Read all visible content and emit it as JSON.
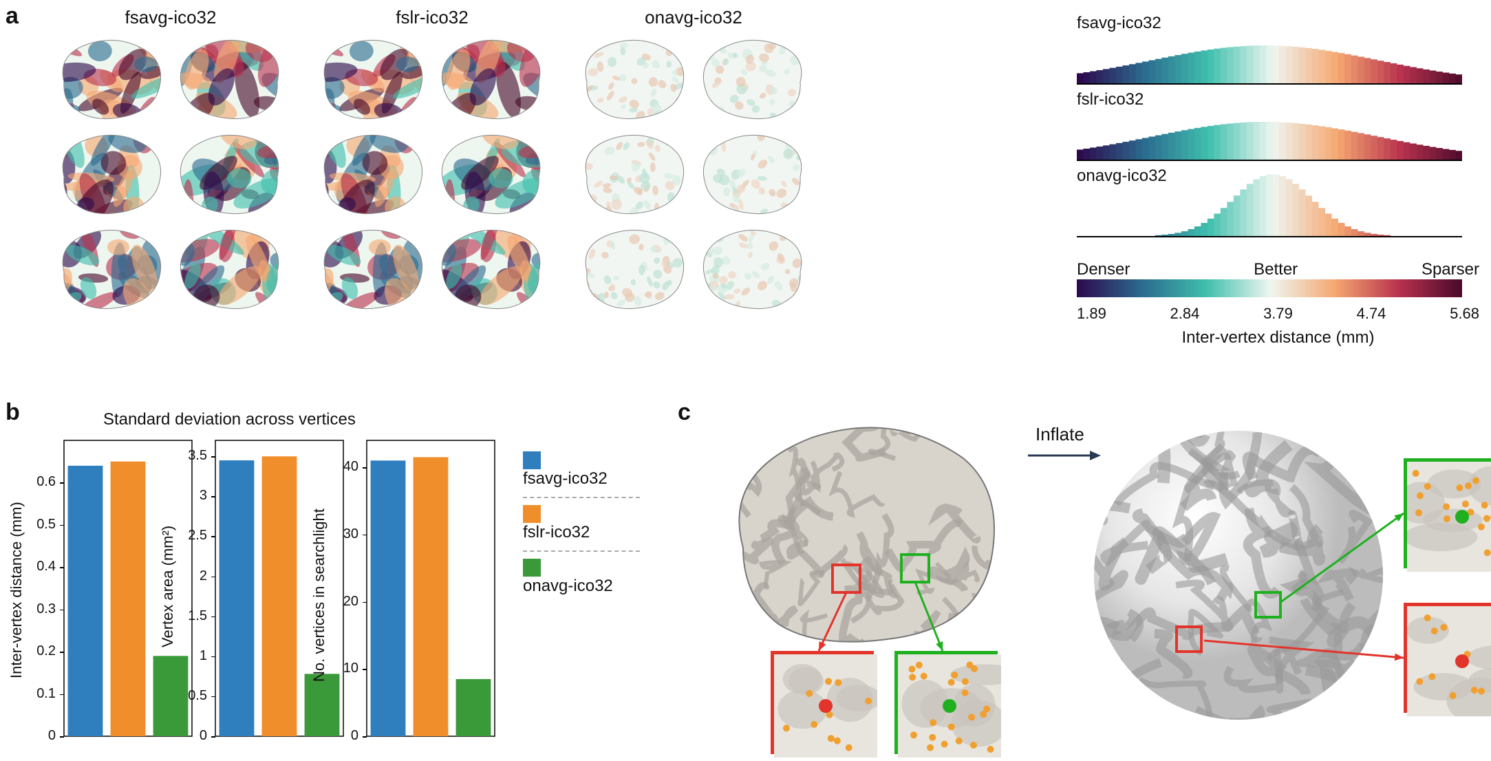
{
  "panel_labels": {
    "a": "a",
    "b": "b",
    "c": "c"
  },
  "brain_columns": [
    {
      "title": "fsavg-ico32",
      "palette": "strong"
    },
    {
      "title": "fslr-ico32",
      "palette": "strong"
    },
    {
      "title": "onavg-ico32",
      "palette": "weak"
    }
  ],
  "histograms": {
    "items": [
      {
        "label": "fsavg-ico32",
        "shape": "wide"
      },
      {
        "label": "fslr-ico32",
        "shape": "wide"
      },
      {
        "label": "onavg-ico32",
        "shape": "narrow"
      }
    ]
  },
  "colorbar": {
    "left_label": "Denser",
    "mid_label": "Better",
    "right_label": "Sparser",
    "axis_label": "Inter-vertex distance (mm)",
    "ticks": [
      "1.89",
      "2.84",
      "3.79",
      "4.74",
      "5.68"
    ],
    "stops": [
      "#2d0a4e",
      "#2b6b8f",
      "#3fbfad",
      "#eef6f0",
      "#f5a872",
      "#b8324d",
      "#47092a"
    ]
  },
  "panel_b": {
    "title": "Standard deviation across vertices",
    "title_fontsize": 24,
    "colors": {
      "fsavg": "#2f7fbf",
      "fslr": "#f18e2c",
      "onavg": "#3a9a3a"
    },
    "legend": [
      {
        "key": "fsavg",
        "label": "fsavg-ico32"
      },
      {
        "key": "fslr",
        "label": "fslr-ico32"
      },
      {
        "key": "onavg",
        "label": "onavg-ico32"
      }
    ],
    "charts": [
      {
        "ylabel": "Inter-vertex distance (mm)",
        "ymax": 0.7,
        "yticks": [
          0,
          0.1,
          0.2,
          0.3,
          0.4,
          0.5,
          0.6
        ],
        "values": {
          "fsavg": 0.64,
          "fslr": 0.65,
          "onavg": 0.19
        }
      },
      {
        "ylabel": "Vertex area (mm²)",
        "ymax": 3.7,
        "yticks": [
          0,
          0.5,
          1.0,
          1.5,
          2.0,
          2.5,
          3.0,
          3.5
        ],
        "values": {
          "fsavg": 3.45,
          "fslr": 3.5,
          "onavg": 0.78
        }
      },
      {
        "ylabel": "No. vertices in searchlight",
        "ymax": 44,
        "yticks": [
          0,
          10,
          20,
          30,
          40
        ],
        "values": {
          "fsavg": 41,
          "fslr": 41.5,
          "onavg": 8.5
        }
      }
    ]
  },
  "panel_c": {
    "inflate_label": "Inflate",
    "highlight_colors": {
      "sparse": "#e2342a",
      "dense": "#1fb01f"
    },
    "dot_color": "#f0a030",
    "brain_fill": "#d8d4cc",
    "brain_shade": "#a8a49c",
    "sphere_light": "#e6e6e6",
    "sphere_dark": "#9a9a9a"
  }
}
